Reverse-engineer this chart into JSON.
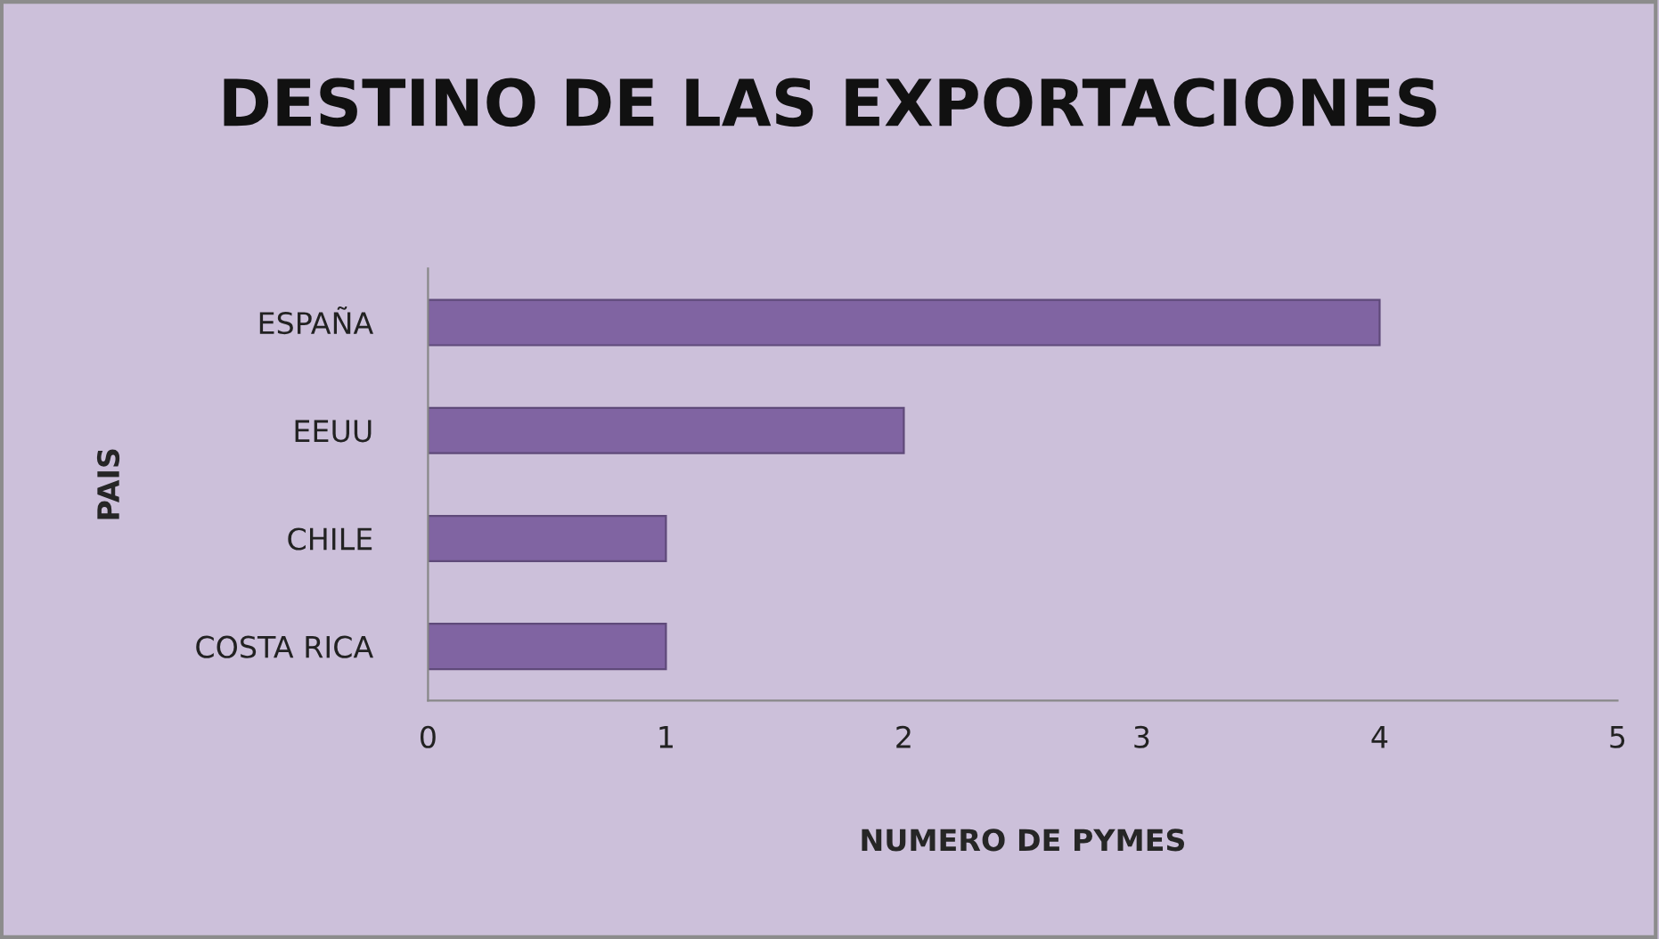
{
  "chart_data": {
    "type": "bar",
    "orientation": "horizontal",
    "title": "DESTINO DE LAS EXPORTACIONES",
    "xlabel": "NUMERO DE PYMES",
    "ylabel": "PAIS",
    "categories": [
      "ESPAÑA",
      "EEUU",
      "CHILE",
      "COSTA RICA"
    ],
    "values": [
      4,
      2,
      1,
      1
    ],
    "color": "#8064a2",
    "xlim": [
      0,
      5
    ],
    "xticks": [
      0,
      1,
      2,
      3,
      4,
      5
    ]
  }
}
